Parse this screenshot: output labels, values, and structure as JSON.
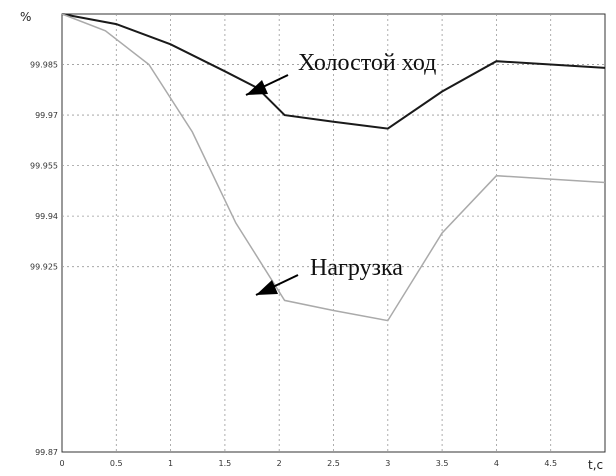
{
  "chart_data": {
    "type": "line",
    "ylabel": "%",
    "xlabel": "t,c",
    "xlim": [
      0,
      5
    ],
    "ylim": [
      99.87,
      100
    ],
    "x_ticks": [
      "0",
      "0.5",
      "1",
      "1.5",
      "2",
      "2.5",
      "3",
      "3.5",
      "4",
      "4.5"
    ],
    "y_ticks": [
      {
        "value": 99.985,
        "label": "99.985"
      },
      {
        "value": 99.97,
        "label": "99.97"
      },
      {
        "value": 99.955,
        "label": "99.955"
      },
      {
        "value": 99.94,
        "label": "99.94"
      },
      {
        "value": 99.925,
        "label": "99.925"
      },
      {
        "value": 99.87,
        "label": "99.87"
      }
    ],
    "grid": true,
    "series": [
      {
        "name": "Холостой ход",
        "color": "#1a1a1a",
        "points": [
          [
            0,
            100.0
          ],
          [
            0.5,
            99.997
          ],
          [
            1,
            99.991
          ],
          [
            1.5,
            99.983
          ],
          [
            1.8,
            99.978
          ],
          [
            2.05,
            99.97
          ],
          [
            2.5,
            99.968
          ],
          [
            3.0,
            99.966
          ],
          [
            3.5,
            99.977
          ],
          [
            4.0,
            99.986
          ],
          [
            4.5,
            99.985
          ],
          [
            5.0,
            99.984
          ]
        ]
      },
      {
        "name": "Нагрузка",
        "color": "#aaaaaa",
        "points": [
          [
            0,
            100.0
          ],
          [
            0.4,
            99.995
          ],
          [
            0.8,
            99.985
          ],
          [
            1.2,
            99.965
          ],
          [
            1.6,
            99.938
          ],
          [
            2.05,
            99.915
          ],
          [
            2.5,
            99.912
          ],
          [
            3.0,
            99.909
          ],
          [
            3.5,
            99.935
          ],
          [
            4.0,
            99.952
          ],
          [
            4.5,
            99.951
          ],
          [
            5.0,
            99.95
          ]
        ]
      }
    ],
    "annotations": [
      {
        "text": "Холостой ход",
        "series": 0
      },
      {
        "text": "Нагрузка",
        "series": 1
      }
    ]
  }
}
